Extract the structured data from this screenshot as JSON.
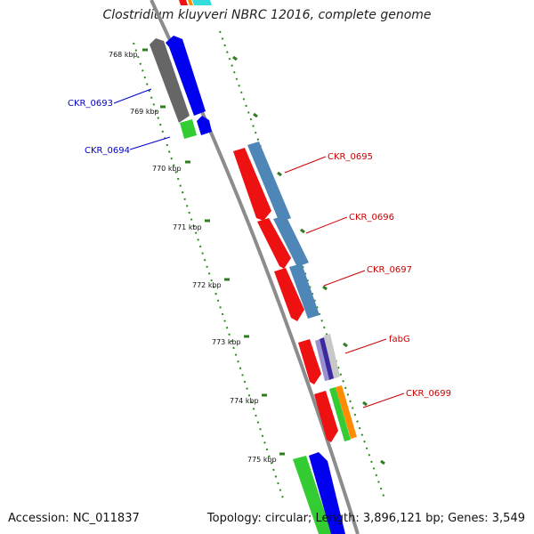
{
  "title": "Clostridium kluyveri NBRC 12016, complete genome",
  "footer": {
    "accession": "Accession: NC_011837",
    "topology": "Topology: circular; Length: 3,896,121 bp; Genes: 3,549"
  },
  "colors": {
    "backbone": "#8c8c8c",
    "tick": "#2e7d1e",
    "dot": "#2e8b1e",
    "left_strand_label": "#0000cc",
    "right_strand_label": "#cc0000",
    "red": "#ee1111",
    "blue": "#0000ee",
    "steel": "#4f86b8",
    "gray": "#666666",
    "green": "#33cc33",
    "orange": "#ff8c00",
    "indigo": "#3a2aa0",
    "lavender": "#9a90d0",
    "silver": "#c8c8c8",
    "cyan": "#33dddd"
  },
  "ticks": [
    {
      "label": "768 kbp"
    },
    {
      "label": "769 kbp"
    },
    {
      "label": "770 kbp"
    },
    {
      "label": "771 kbp"
    },
    {
      "label": "772 kbp"
    },
    {
      "label": "773 kbp"
    },
    {
      "label": "774 kbp"
    },
    {
      "label": "775 kbp"
    }
  ],
  "gene_labels": [
    {
      "text": "CKR_0693",
      "side": "left"
    },
    {
      "text": "CKR_0694",
      "side": "left"
    },
    {
      "text": "CKR_0695",
      "side": "right"
    },
    {
      "text": "CKR_0696",
      "side": "right"
    },
    {
      "text": "CKR_0697",
      "side": "right"
    },
    {
      "text": "fabG",
      "side": "right"
    },
    {
      "text": "CKR_0699",
      "side": "right"
    }
  ]
}
